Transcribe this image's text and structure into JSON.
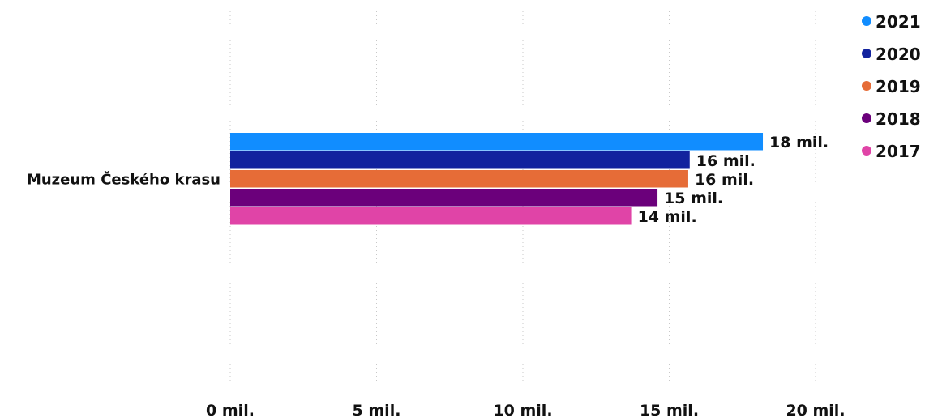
{
  "chart_data": {
    "type": "bar",
    "orientation": "horizontal",
    "categories": [
      "Muzeum Českého krasu"
    ],
    "series": [
      {
        "name": "2021",
        "values": [
          18.2
        ],
        "label": "18 mil.",
        "color": "#118DFF"
      },
      {
        "name": "2020",
        "values": [
          15.7
        ],
        "label": "16 mil.",
        "color": "#12239E"
      },
      {
        "name": "2019",
        "values": [
          15.65
        ],
        "label": "16 mil.",
        "color": "#E66C37"
      },
      {
        "name": "2018",
        "values": [
          14.6
        ],
        "label": "15 mil.",
        "color": "#6B007B"
      },
      {
        "name": "2017",
        "values": [
          13.7
        ],
        "label": "14 mil.",
        "color": "#E044A7"
      }
    ],
    "xlim": [
      0,
      20
    ],
    "xticks": [
      0,
      5,
      10,
      15,
      20
    ],
    "xtick_labels": [
      "0 mil.",
      "5 mil.",
      "10 mil.",
      "15 mil.",
      "20 mil."
    ],
    "title": "",
    "xlabel": "",
    "ylabel": "",
    "grid": "vertical dotted",
    "legend_position": "top-right"
  }
}
